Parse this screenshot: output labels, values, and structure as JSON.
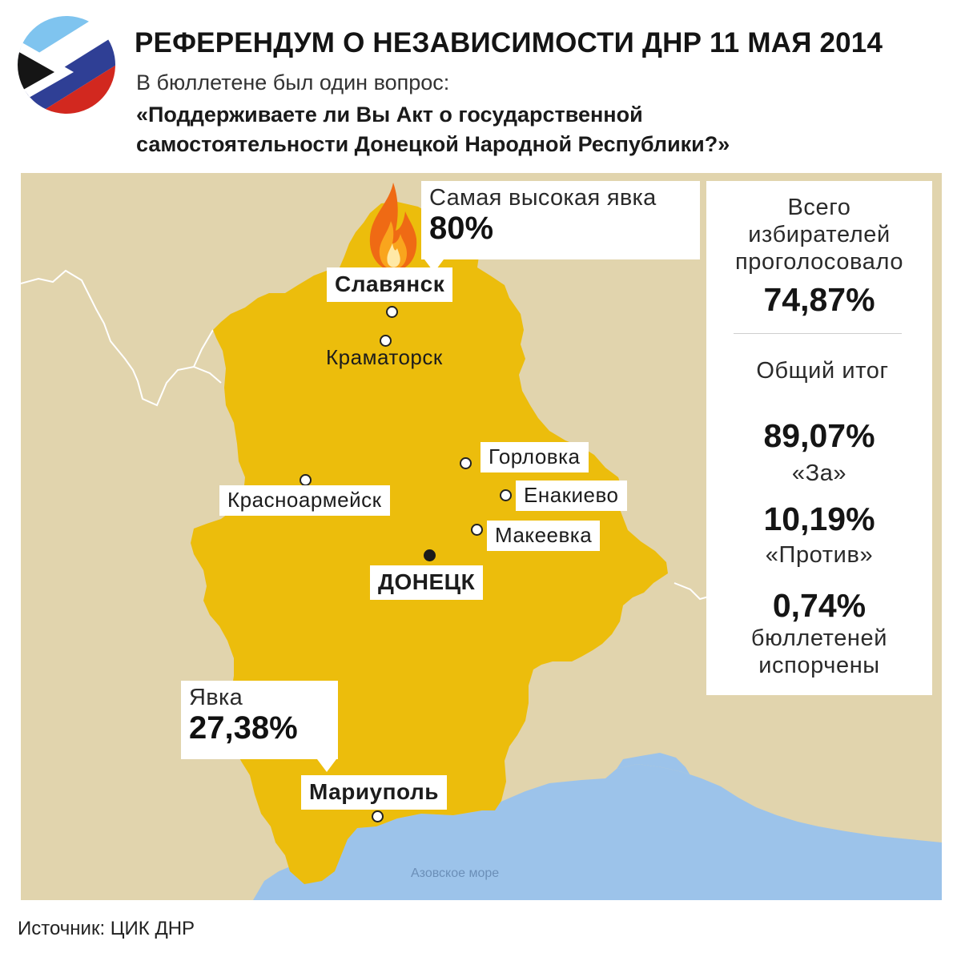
{
  "header": {
    "title": "РЕФЕРЕНДУМ О НЕЗАВИСИМОСТИ ДНР 11 МАЯ 2014",
    "subtitle": "В бюллетене был один вопрос:",
    "question_line1": "«Поддерживаете ли Вы Акт о государственной",
    "question_line2": "самостоятельности Донецкой Народной Республики?»"
  },
  "colors": {
    "land": "#e1d4ad",
    "region": "#ecbd0c",
    "sea": "#9cc3ea",
    "flag_black": "#151515",
    "flag_blue": "#2f3f95",
    "flag_light_blue": "#7fc4ef",
    "flag_red": "#d2281f"
  },
  "map": {
    "cities": {
      "slavyansk": "Славянск",
      "kramatorsk": "Краматорск",
      "gorlovka": "Горловка",
      "enakievo": "Енакиево",
      "krasnoarmeysk": "Красноармейск",
      "makeevka": "Макеевка",
      "donetsk": "ДОНЕЦК",
      "mariupol": "Мариуполь"
    },
    "sea_label": "Азовское море",
    "callout_high": {
      "label": "Самая высокая явка",
      "value": "80%",
      "icon": "fire-icon"
    },
    "callout_low": {
      "label": "Явка",
      "value": "27,38%"
    }
  },
  "summary": {
    "turnout_label_1": "Всего",
    "turnout_label_2": "избирателей",
    "turnout_label_3": "проголосовало",
    "turnout_value": "74,87%",
    "result_title": "Общий итог",
    "for_value": "89,07%",
    "for_label": "«За»",
    "against_value": "10,19%",
    "against_label": "«Против»",
    "spoiled_value": "0,74%",
    "spoiled_label_1": "бюллетеней",
    "spoiled_label_2": "испорчены"
  },
  "footer": {
    "source": "Источник: ЦИК ДНР"
  }
}
